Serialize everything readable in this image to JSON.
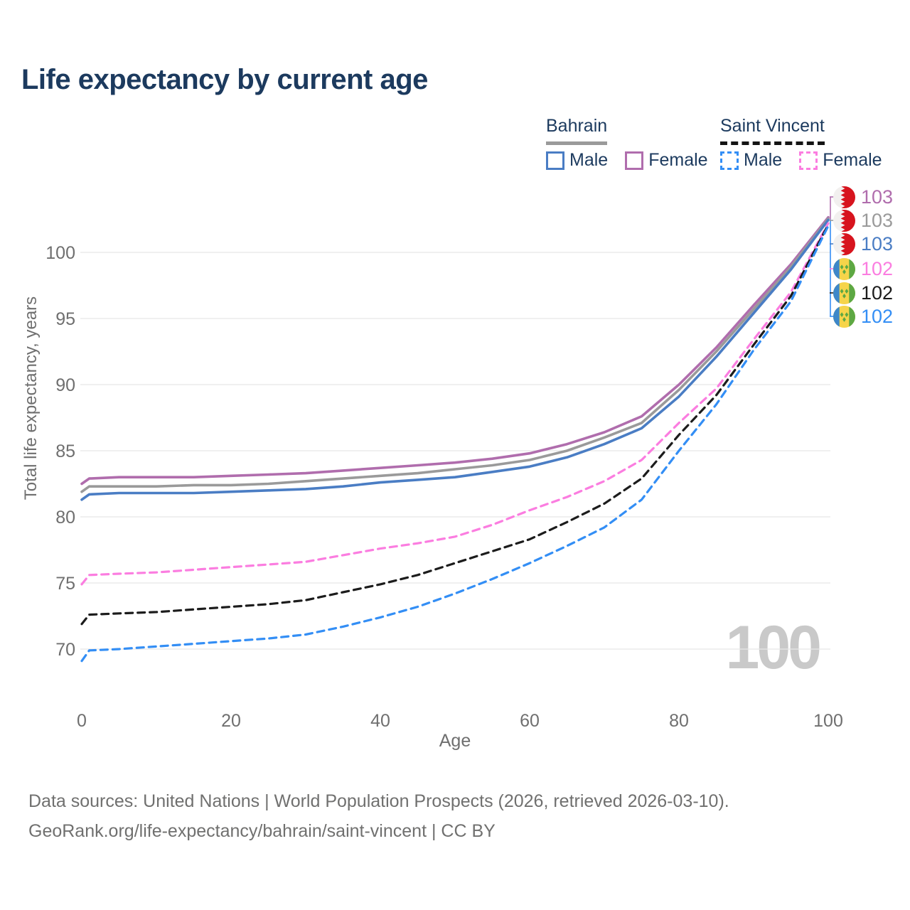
{
  "header": {
    "title": "Life expectancy by current age"
  },
  "legend": {
    "groups": [
      {
        "country": "Bahrain",
        "items": [
          {
            "label": "Male"
          },
          {
            "label": "Female"
          }
        ]
      },
      {
        "country": "Saint Vincent",
        "items": [
          {
            "label": "Male"
          },
          {
            "label": "Female"
          }
        ]
      }
    ]
  },
  "watermark": "100",
  "footer": {
    "line1": "Data sources: United Nations | World Population Prospects (2026, retrieved 2026-03-10).",
    "line2": "GeoRank.org/life-expectancy/bahrain/saint-vincent | CC BY"
  },
  "colors": {
    "title_text": "#1c3a5e",
    "tick_text": "#6f6f6f",
    "grid": "#e7e7e7",
    "bahrain_underline": "#9a9a9a",
    "saint_vincent_underline": "#141414"
  },
  "chart_data": {
    "type": "line",
    "title": "Life expectancy by current age",
    "xlabel": "Age",
    "ylabel": "Total life expectancy, years",
    "xlim": [
      0,
      100
    ],
    "ylim": [
      68.5,
      104
    ],
    "xticks": [
      0,
      20,
      40,
      60,
      80,
      100
    ],
    "yticks": [
      70,
      75,
      80,
      85,
      90,
      95,
      100
    ],
    "grid": "horizontal",
    "legend_position": "top-right",
    "x": [
      0,
      1,
      5,
      10,
      15,
      20,
      25,
      30,
      35,
      40,
      45,
      50,
      55,
      60,
      65,
      70,
      75,
      80,
      85,
      90,
      95,
      100
    ],
    "series": [
      {
        "name": "Bahrain Female",
        "country": "Bahrain",
        "sex": "Female",
        "color": "#b06dad",
        "dash": "solid",
        "end_label": "103",
        "flag": "bahrain",
        "values": [
          82.5,
          82.9,
          83.0,
          83.0,
          83.0,
          83.1,
          83.2,
          83.3,
          83.5,
          83.7,
          83.9,
          84.1,
          84.4,
          84.8,
          85.5,
          86.4,
          87.6,
          90.0,
          92.8,
          96.0,
          99.1,
          102.65
        ]
      },
      {
        "name": "Bahrain Both sexes",
        "country": "Bahrain",
        "sex": "Both",
        "color": "#9a9a9a",
        "dash": "solid",
        "end_label": "103",
        "flag": "bahrain",
        "values": [
          81.9,
          82.3,
          82.3,
          82.3,
          82.4,
          82.4,
          82.5,
          82.7,
          82.9,
          83.1,
          83.3,
          83.6,
          83.9,
          84.3,
          85.0,
          86.0,
          87.1,
          89.6,
          92.5,
          95.7,
          98.9,
          102.55
        ]
      },
      {
        "name": "Bahrain Male",
        "country": "Bahrain",
        "sex": "Male",
        "color": "#4a7dc4",
        "dash": "solid",
        "end_label": "103",
        "flag": "bahrain",
        "values": [
          81.3,
          81.7,
          81.8,
          81.8,
          81.8,
          81.9,
          82.0,
          82.1,
          82.3,
          82.6,
          82.8,
          83.0,
          83.4,
          83.8,
          84.5,
          85.5,
          86.7,
          89.1,
          92.1,
          95.4,
          98.7,
          102.45
        ]
      },
      {
        "name": "Saint Vincent Female",
        "country": "Saint Vincent",
        "sex": "Female",
        "color": "#fb7de0",
        "dash": "dashed",
        "end_label": "102",
        "flag": "saint-vincent",
        "values": [
          74.9,
          75.6,
          75.7,
          75.8,
          76.0,
          76.2,
          76.4,
          76.6,
          77.1,
          77.6,
          78.0,
          78.5,
          79.4,
          80.5,
          81.5,
          82.7,
          84.3,
          87.1,
          89.7,
          93.4,
          97.0,
          102.2
        ]
      },
      {
        "name": "Saint Vincent Both sexes",
        "country": "Saint Vincent",
        "sex": "Both",
        "color": "#1c1c1c",
        "dash": "dashed",
        "end_label": "102",
        "flag": "saint-vincent",
        "values": [
          71.9,
          72.6,
          72.7,
          72.8,
          73.0,
          73.2,
          73.4,
          73.7,
          74.3,
          74.9,
          75.6,
          76.5,
          77.4,
          78.3,
          79.6,
          81.0,
          82.9,
          86.2,
          89.2,
          93.0,
          96.7,
          102.1
        ]
      },
      {
        "name": "Saint Vincent Male",
        "country": "Saint Vincent",
        "sex": "Male",
        "color": "#338ef5",
        "dash": "dashed",
        "end_label": "102",
        "flag": "saint-vincent",
        "values": [
          69.1,
          69.9,
          70.0,
          70.2,
          70.4,
          70.6,
          70.8,
          71.1,
          71.7,
          72.4,
          73.2,
          74.2,
          75.3,
          76.5,
          77.8,
          79.2,
          81.3,
          85.0,
          88.5,
          92.6,
          96.3,
          102.0
        ]
      }
    ]
  }
}
